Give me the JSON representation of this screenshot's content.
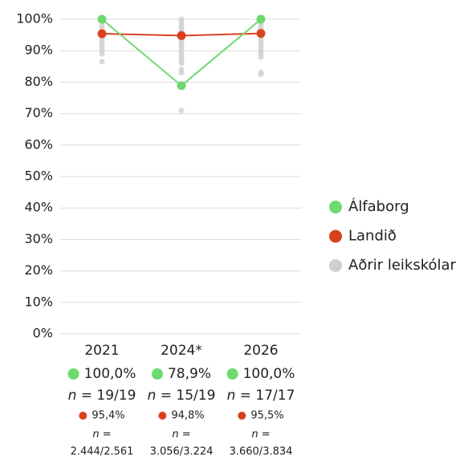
{
  "chart_data": {
    "type": "line",
    "categories": [
      "2021",
      "2024*",
      "2026"
    ],
    "ylim": [
      0,
      100
    ],
    "yticks": [
      {
        "value": 0,
        "label": "0%"
      },
      {
        "value": 10,
        "label": "10%"
      },
      {
        "value": 20,
        "label": "20%"
      },
      {
        "value": 30,
        "label": "30%"
      },
      {
        "value": 40,
        "label": "40%"
      },
      {
        "value": 50,
        "label": "50%"
      },
      {
        "value": 60,
        "label": "60%"
      },
      {
        "value": 70,
        "label": "70%"
      },
      {
        "value": 80,
        "label": "80%"
      },
      {
        "value": 90,
        "label": "90%"
      },
      {
        "value": 100,
        "label": "100%"
      }
    ],
    "grid": true,
    "legend": "right",
    "n_symbol": "n",
    "equals": "=",
    "series": [
      {
        "name": "Álfaborg",
        "color": "#6ed96e",
        "values": [
          100,
          78.9,
          100
        ],
        "value_labels": [
          "100,0%",
          "78,9%",
          "100,0%"
        ],
        "counts": [
          "19/19",
          "15/19",
          "17/17"
        ]
      },
      {
        "name": "Landið",
        "color": "#d9411e",
        "values": [
          95.4,
          94.8,
          95.5
        ],
        "value_labels": [
          "95,4%",
          "94,8%",
          "95,5%"
        ],
        "counts": [
          "2.444/2.561",
          "3.056/3.224",
          "3.660/3.834"
        ]
      },
      {
        "name": "Aðrir leikskólar",
        "color": "#cfcfcf",
        "values": [
          [
            100,
            98,
            97,
            96,
            95,
            94,
            93,
            92,
            91,
            90,
            89,
            86.5
          ],
          [
            100,
            99,
            98,
            97,
            96,
            95,
            94,
            93,
            92,
            91,
            90,
            89,
            88,
            87,
            86,
            84,
            83,
            71
          ],
          [
            100,
            99,
            98,
            97,
            96,
            95,
            94,
            93,
            92,
            91,
            90,
            89,
            88,
            83,
            82.5
          ]
        ]
      }
    ]
  }
}
